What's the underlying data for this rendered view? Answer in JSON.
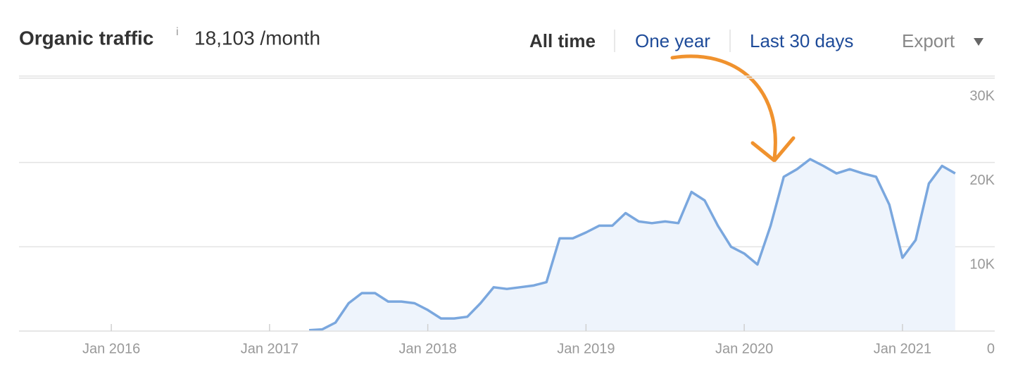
{
  "chart_data": {
    "type": "line",
    "title": "Organic traffic",
    "info_icon": "i",
    "subtitle": "18,103 /month",
    "controls": [
      "All time",
      "One year",
      "Last 30 days",
      "Export"
    ],
    "active_control": "All time",
    "x": [
      "2017-04",
      "2017-05",
      "2017-06",
      "2017-07",
      "2017-08",
      "2017-09",
      "2017-10",
      "2017-11",
      "2017-12",
      "2018-01",
      "2018-02",
      "2018-03",
      "2018-04",
      "2018-05",
      "2018-06",
      "2018-07",
      "2018-08",
      "2018-09",
      "2018-10",
      "2018-11",
      "2018-12",
      "2019-01",
      "2019-02",
      "2019-03",
      "2019-04",
      "2019-05",
      "2019-06",
      "2019-07",
      "2019-08",
      "2019-09",
      "2019-10",
      "2019-11",
      "2019-12",
      "2020-01",
      "2020-02",
      "2020-03",
      "2020-04",
      "2020-05",
      "2020-06",
      "2020-07",
      "2020-08",
      "2020-09",
      "2020-10",
      "2020-11",
      "2020-12",
      "2021-01",
      "2021-02",
      "2021-03",
      "2021-04",
      "2021-05"
    ],
    "series": [
      {
        "name": "Organic traffic",
        "color": "#7aa7de",
        "fill": "#eef4fc",
        "values": [
          100,
          200,
          1000,
          3300,
          4500,
          4500,
          3500,
          3500,
          3300,
          2500,
          1500,
          1500,
          1700,
          3300,
          5200,
          5000,
          5200,
          5400,
          5800,
          11000,
          11000,
          11700,
          12500,
          12500,
          14000,
          13000,
          12800,
          13000,
          12800,
          16500,
          15500,
          12500,
          10000,
          9200,
          7900,
          12500,
          18300,
          19200,
          20400,
          19600,
          18700,
          19200,
          18700,
          18300,
          15000,
          8700,
          10800,
          17500,
          19600,
          18700
        ]
      }
    ],
    "xlim": [
      "2015-06",
      "2021-08"
    ],
    "xticks": [
      {
        "value": "2016-01",
        "label": "Jan 2016"
      },
      {
        "value": "2017-01",
        "label": "Jan 2017"
      },
      {
        "value": "2018-01",
        "label": "Jan 2018"
      },
      {
        "value": "2019-01",
        "label": "Jan 2019"
      },
      {
        "value": "2020-01",
        "label": "Jan 2020"
      },
      {
        "value": "2021-01",
        "label": "Jan 2021"
      }
    ],
    "ylim": [
      0,
      30000
    ],
    "yticks": [
      0,
      {
        "value": 10000,
        "label": "10K"
      },
      {
        "value": 20000,
        "label": "20K"
      },
      {
        "value": 30000,
        "label": "30K"
      }
    ],
    "grid": true
  }
}
